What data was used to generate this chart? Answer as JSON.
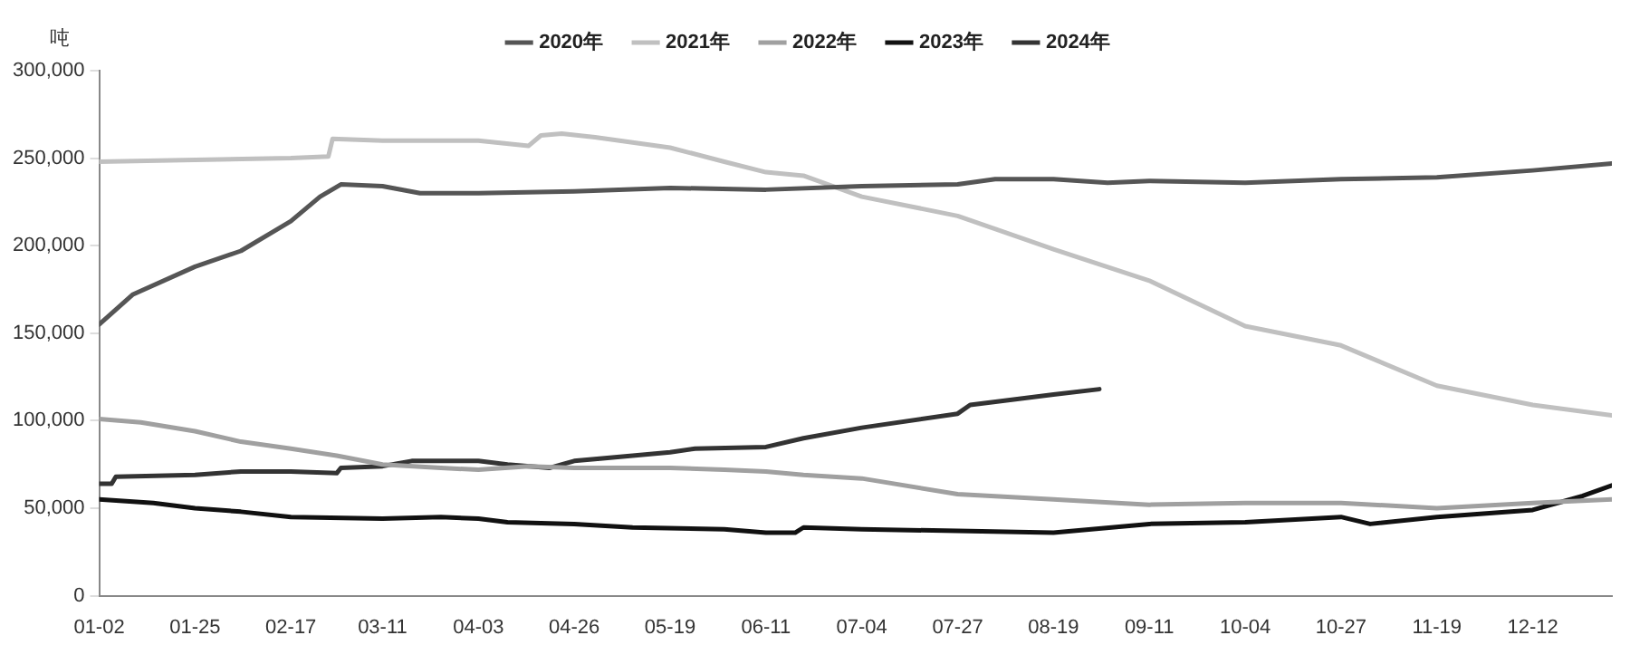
{
  "chart_data": {
    "type": "line",
    "ylabel": "吨",
    "legend": "top",
    "grid": false,
    "marker": "none",
    "line_style": "solid",
    "xlim": [
      "--01-02",
      "--12-31"
    ],
    "xticks": [
      {
        "value": "--01-02",
        "label": "01-02"
      },
      {
        "value": "--01-25",
        "label": "01-25"
      },
      {
        "value": "--02-17",
        "label": "02-17"
      },
      {
        "value": "--03-11",
        "label": "03-11"
      },
      {
        "value": "--04-03",
        "label": "04-03"
      },
      {
        "value": "--04-26",
        "label": "04-26"
      },
      {
        "value": "--05-19",
        "label": "05-19"
      },
      {
        "value": "--06-11",
        "label": "06-11"
      },
      {
        "value": "--07-04",
        "label": "07-04"
      },
      {
        "value": "--07-27",
        "label": "07-27"
      },
      {
        "value": "--08-19",
        "label": "08-19"
      },
      {
        "value": "--09-11",
        "label": "09-11"
      },
      {
        "value": "--10-04",
        "label": "10-04"
      },
      {
        "value": "--10-27",
        "label": "10-27"
      },
      {
        "value": "--11-19",
        "label": "11-19"
      },
      {
        "value": "--12-12",
        "label": "12-12"
      }
    ],
    "ylim": [
      0,
      300000
    ],
    "yticks": [
      {
        "value": 0,
        "label": "0"
      },
      {
        "value": 50000,
        "label": "50,000"
      },
      {
        "value": 100000,
        "label": "100,000"
      },
      {
        "value": 150000,
        "label": "150,000"
      },
      {
        "value": 200000,
        "label": "200,000"
      },
      {
        "value": 250000,
        "label": "250,000"
      },
      {
        "value": 300000,
        "label": "300,000"
      }
    ],
    "series": [
      {
        "name": "2020年",
        "color": "#555555",
        "x": [
          "--01-02",
          "--01-10",
          "--01-25",
          "--02-05",
          "--02-17",
          "--02-24",
          "--03-01",
          "--03-11",
          "--03-20",
          "--04-03",
          "--04-26",
          "--05-19",
          "--06-11",
          "--07-04",
          "--07-27",
          "--08-05",
          "--08-19",
          "--09-01",
          "--09-11",
          "--10-04",
          "--10-27",
          "--11-19",
          "--12-12",
          "--12-31"
        ],
        "values": [
          155000,
          172000,
          188000,
          197000,
          214000,
          228000,
          235000,
          234000,
          230000,
          230000,
          231000,
          233000,
          232000,
          234000,
          235000,
          238000,
          238000,
          236000,
          237000,
          236000,
          238000,
          239000,
          243000,
          247000
        ]
      },
      {
        "name": "2021年",
        "color": "#c0c0c0",
        "x": [
          "--01-02",
          "--01-25",
          "--02-17",
          "--02-26",
          "--02-27",
          "--03-11",
          "--04-03",
          "--04-15",
          "--04-18",
          "--04-23",
          "--05-01",
          "--05-19",
          "--06-01",
          "--06-11",
          "--06-20",
          "--07-04",
          "--07-27",
          "--08-19",
          "--09-11",
          "--10-04",
          "--10-27",
          "--11-19",
          "--12-12",
          "--12-31"
        ],
        "values": [
          248000,
          249000,
          250000,
          251000,
          261000,
          260000,
          260000,
          257000,
          263000,
          264000,
          262000,
          256000,
          248000,
          242000,
          240000,
          228000,
          217000,
          198000,
          180000,
          154000,
          143000,
          120000,
          109000,
          103000
        ]
      },
      {
        "name": "2022年",
        "color": "#a0a0a0",
        "x": [
          "--01-02",
          "--01-12",
          "--01-25",
          "--02-05",
          "--02-17",
          "--02-28",
          "--03-11",
          "--03-25",
          "--04-03",
          "--04-15",
          "--04-26",
          "--05-19",
          "--06-01",
          "--06-11",
          "--06-20",
          "--07-04",
          "--07-27",
          "--08-19",
          "--09-11",
          "--10-04",
          "--10-27",
          "--11-19",
          "--12-12",
          "--12-31"
        ],
        "values": [
          101000,
          99000,
          94000,
          88000,
          84000,
          80000,
          75000,
          73000,
          72000,
          74000,
          73000,
          73000,
          72000,
          71000,
          69000,
          67000,
          58000,
          55000,
          52000,
          53000,
          53000,
          50000,
          53000,
          55000
        ]
      },
      {
        "name": "2023年",
        "color": "#111111",
        "x": [
          "--01-02",
          "--01-15",
          "--01-25",
          "--02-05",
          "--02-17",
          "--03-11",
          "--03-25",
          "--04-03",
          "--04-10",
          "--04-26",
          "--05-10",
          "--06-01",
          "--06-11",
          "--06-18",
          "--06-20",
          "--07-04",
          "--07-27",
          "--08-19",
          "--09-11",
          "--10-04",
          "--10-27",
          "--11-03",
          "--11-19",
          "--12-12",
          "--12-24",
          "--12-31"
        ],
        "values": [
          55000,
          53000,
          50000,
          48000,
          45000,
          44000,
          45000,
          44000,
          42000,
          41000,
          39000,
          38000,
          36000,
          36000,
          39000,
          38000,
          37000,
          36000,
          41000,
          42000,
          45000,
          41000,
          45000,
          49000,
          57000,
          63000
        ]
      },
      {
        "name": "2024年",
        "color": "#333333",
        "x": [
          "--01-02",
          "--01-05",
          "--01-06",
          "--01-25",
          "--02-05",
          "--02-17",
          "--02-28",
          "--03-01",
          "--03-11",
          "--03-18",
          "--04-03",
          "--04-10",
          "--04-20",
          "--04-26",
          "--05-10",
          "--05-19",
          "--05-25",
          "--06-11",
          "--06-20",
          "--07-04",
          "--07-27",
          "--07-30",
          "--08-19",
          "--08-30"
        ],
        "values": [
          64000,
          64000,
          68000,
          69000,
          71000,
          71000,
          70000,
          73000,
          74000,
          77000,
          77000,
          75000,
          73000,
          77000,
          80000,
          82000,
          84000,
          85000,
          90000,
          96000,
          104000,
          109000,
          115000,
          118000
        ]
      }
    ]
  }
}
